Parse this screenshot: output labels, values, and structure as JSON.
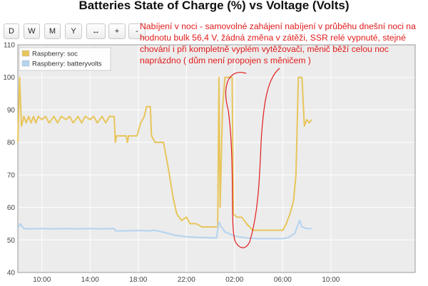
{
  "title": "Batteries State of Charge (%) vs Voltage (Volts)",
  "toolbar": {
    "buttons": [
      "D",
      "W",
      "M",
      "Y",
      "↔",
      "+",
      "-"
    ]
  },
  "annotation": "Nabíjení v noci - samovolné zahájení nabíjení v průběhu dnešní noci na hodnotu bulk 56,4 V, žádná změna v zátěži, SSR relé vypnuté, stejné chování i při kompletně vyplém vytěžovači, měnič běží celou noc naprázdno ( dům není propojen s měničem )",
  "colors": {
    "soc": "#e8c55b",
    "batteryvolts": "#b4d3ef",
    "annotation": "#e11a1a",
    "plot_background": "#ececec",
    "grid": "#ffffff"
  },
  "chart_data": {
    "type": "line",
    "title": "Batteries State of Charge (%) vs Voltage (Volts)",
    "xlabel": "",
    "ylabel": "",
    "x_unit": "hours since 08:00 (day 1)",
    "xlim": [
      0,
      33
    ],
    "ylim": [
      40,
      110
    ],
    "y_ticks": [
      40,
      50,
      60,
      70,
      80,
      90,
      100,
      110
    ],
    "x_ticks": [
      {
        "x": 2,
        "label": "10:00"
      },
      {
        "x": 6,
        "label": "14:00"
      },
      {
        "x": 10,
        "label": "18:00"
      },
      {
        "x": 14,
        "label": "22:00"
      },
      {
        "x": 18,
        "label": "02:00"
      },
      {
        "x": 22,
        "label": "06:00"
      },
      {
        "x": 26,
        "label": "10:00"
      }
    ],
    "grid": true,
    "legend_position": "top-left",
    "series": [
      {
        "name": "Raspberry: soc",
        "color": "#e8c55b",
        "points": [
          [
            0.0,
            80
          ],
          [
            0.15,
            100
          ],
          [
            0.3,
            85
          ],
          [
            0.5,
            88
          ],
          [
            0.7,
            86
          ],
          [
            0.9,
            88
          ],
          [
            1.1,
            86
          ],
          [
            1.3,
            88
          ],
          [
            1.5,
            86
          ],
          [
            1.7,
            88
          ],
          [
            2.0,
            87
          ],
          [
            2.3,
            88
          ],
          [
            2.6,
            86
          ],
          [
            3.0,
            88
          ],
          [
            3.3,
            86
          ],
          [
            3.6,
            88
          ],
          [
            4.0,
            87
          ],
          [
            4.3,
            88
          ],
          [
            4.6,
            86
          ],
          [
            5.0,
            88
          ],
          [
            5.3,
            86
          ],
          [
            5.6,
            88
          ],
          [
            6.0,
            87
          ],
          [
            6.3,
            88
          ],
          [
            6.6,
            86
          ],
          [
            7.0,
            88
          ],
          [
            7.3,
            86
          ],
          [
            7.6,
            88
          ],
          [
            8.0,
            88
          ],
          [
            8.1,
            80
          ],
          [
            8.2,
            82
          ],
          [
            8.6,
            82
          ],
          [
            9.0,
            82
          ],
          [
            9.1,
            80
          ],
          [
            9.2,
            82
          ],
          [
            9.6,
            82
          ],
          [
            9.9,
            82
          ],
          [
            10.2,
            86
          ],
          [
            10.5,
            88
          ],
          [
            10.7,
            91
          ],
          [
            11.0,
            91
          ],
          [
            11.1,
            82
          ],
          [
            11.4,
            80
          ],
          [
            11.8,
            80
          ],
          [
            12.1,
            80
          ],
          [
            12.5,
            72
          ],
          [
            12.9,
            63
          ],
          [
            13.2,
            58
          ],
          [
            13.6,
            56
          ],
          [
            14.0,
            57
          ],
          [
            14.3,
            55
          ],
          [
            14.8,
            55
          ],
          [
            15.3,
            54
          ],
          [
            15.8,
            54
          ],
          [
            16.2,
            54
          ],
          [
            16.6,
            54
          ],
          [
            16.7,
            100
          ],
          [
            16.8,
            60
          ],
          [
            17.0,
            90
          ],
          [
            17.2,
            100
          ],
          [
            17.8,
            100
          ],
          [
            17.9,
            58
          ],
          [
            18.2,
            57
          ],
          [
            18.6,
            57
          ],
          [
            19.0,
            55
          ],
          [
            19.5,
            53
          ],
          [
            20.0,
            53
          ],
          [
            20.5,
            53
          ],
          [
            21.0,
            53
          ],
          [
            21.5,
            53
          ],
          [
            22.0,
            53
          ],
          [
            22.3,
            55
          ],
          [
            22.6,
            58
          ],
          [
            22.9,
            62
          ],
          [
            23.1,
            70
          ],
          [
            23.3,
            100
          ],
          [
            23.6,
            100
          ],
          [
            23.8,
            85
          ],
          [
            24.0,
            87
          ],
          [
            24.2,
            86
          ],
          [
            24.4,
            87
          ]
        ]
      },
      {
        "name": "Raspberry: batteryvolts",
        "color": "#b4d3ef",
        "points": [
          [
            0.0,
            53.5
          ],
          [
            0.2,
            55
          ],
          [
            0.5,
            53.5
          ],
          [
            1.0,
            53.4
          ],
          [
            2.0,
            53.5
          ],
          [
            3.0,
            53.4
          ],
          [
            4.0,
            53.5
          ],
          [
            5.0,
            53.4
          ],
          [
            6.0,
            53.5
          ],
          [
            7.0,
            53.4
          ],
          [
            8.0,
            53.5
          ],
          [
            8.1,
            52.8
          ],
          [
            9.0,
            52.8
          ],
          [
            10.0,
            52.9
          ],
          [
            11.0,
            52.8
          ],
          [
            11.3,
            53.0
          ],
          [
            12.0,
            52.5
          ],
          [
            13.0,
            51.5
          ],
          [
            14.0,
            51.0
          ],
          [
            15.0,
            50.8
          ],
          [
            16.0,
            50.7
          ],
          [
            16.5,
            50.6
          ],
          [
            16.7,
            55.5
          ],
          [
            16.9,
            54.0
          ],
          [
            17.2,
            52.5
          ],
          [
            17.5,
            52.0
          ],
          [
            18.0,
            51.2
          ],
          [
            19.0,
            50.6
          ],
          [
            20.0,
            50.4
          ],
          [
            21.0,
            50.4
          ],
          [
            22.0,
            50.4
          ],
          [
            22.5,
            50.8
          ],
          [
            23.0,
            52.0
          ],
          [
            23.2,
            54.0
          ],
          [
            23.4,
            56.0
          ],
          [
            23.6,
            54.0
          ],
          [
            24.0,
            53.5
          ],
          [
            24.4,
            53.5
          ]
        ]
      }
    ]
  }
}
